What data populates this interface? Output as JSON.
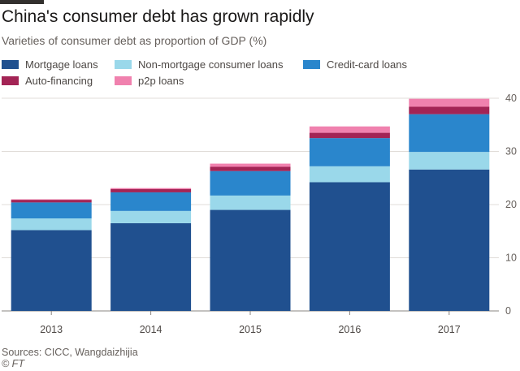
{
  "title": "China's consumer debt has grown rapidly",
  "subtitle": "Varieties of consumer debt as proportion of GDP (%)",
  "source": "Sources: CICC, Wangdaizhijia",
  "credit": "© FT",
  "chart_data": {
    "type": "bar",
    "stacked": true,
    "title": "China's consumer debt has grown rapidly",
    "subtitle": "Varieties of consumer debt as proportion of GDP (%)",
    "categories": [
      "2013",
      "2014",
      "2015",
      "2016",
      "2017"
    ],
    "series": [
      {
        "name": "Mortgage loans",
        "color": "#20508f",
        "values": [
          15.2,
          16.5,
          19.0,
          24.2,
          26.6
        ]
      },
      {
        "name": "Non-mortgage consumer loans",
        "color": "#9ad8ea",
        "values": [
          2.2,
          2.3,
          2.7,
          3.0,
          3.3
        ]
      },
      {
        "name": "Credit-card loans",
        "color": "#2a86cc",
        "values": [
          3.0,
          3.5,
          4.6,
          5.3,
          7.1
        ]
      },
      {
        "name": "Auto-financing",
        "color": "#a32455",
        "values": [
          0.5,
          0.6,
          0.8,
          1.0,
          1.4
        ]
      },
      {
        "name": "p2p loans",
        "color": "#f081ae",
        "values": [
          0.1,
          0.2,
          0.6,
          1.2,
          1.5
        ]
      }
    ],
    "ylim": [
      0,
      40
    ],
    "yticks": [
      "0",
      "10",
      "20",
      "30",
      "40"
    ],
    "y_axis_side": "right",
    "grid": true,
    "legend_placement": "top-left"
  }
}
